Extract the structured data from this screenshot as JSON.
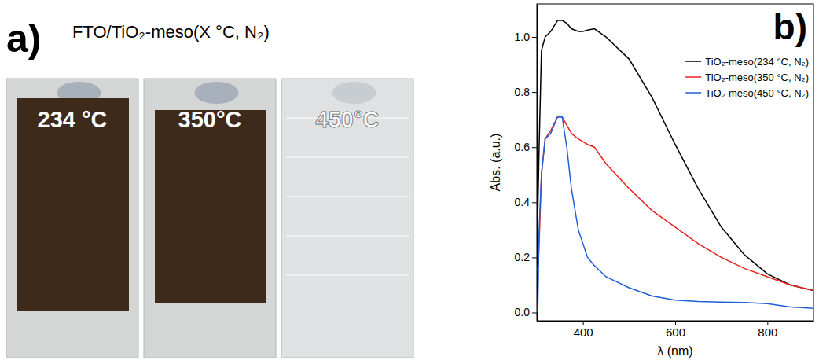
{
  "panel_a": {
    "label": "a)",
    "title": "FTO/TiO₂-meso(X °C, N₂)",
    "samples": [
      "234 °C",
      "350°C",
      "450°C"
    ]
  },
  "chart_data": {
    "type": "line",
    "annotations": [
      "b)"
    ],
    "x_label": "λ (nm)",
    "y_label": "Abs. (a.u.)",
    "x": [
      302,
      305,
      310,
      318,
      330,
      345,
      355,
      365,
      375,
      390,
      400,
      410,
      425,
      450,
      500,
      550,
      600,
      650,
      700,
      750,
      800,
      850,
      900
    ],
    "series": [
      {
        "name": "TiO₂-meso(234 °C, N₂)",
        "color": "#000000",
        "values": [
          0.35,
          0.6,
          0.95,
          1.0,
          1.02,
          1.06,
          1.06,
          1.05,
          1.03,
          1.02,
          1.02,
          1.025,
          1.03,
          1.0,
          0.92,
          0.78,
          0.61,
          0.45,
          0.31,
          0.21,
          0.14,
          0.1,
          0.08
        ]
      },
      {
        "name": "TiO₂-meso(350 °C, N₂)",
        "color": "#e8211c",
        "values": [
          0.15,
          0.25,
          0.5,
          0.63,
          0.66,
          0.71,
          0.71,
          0.68,
          0.65,
          0.63,
          0.62,
          0.61,
          0.6,
          0.54,
          0.45,
          0.37,
          0.31,
          0.25,
          0.2,
          0.16,
          0.13,
          0.1,
          0.08
        ]
      },
      {
        "name": "TiO₂-meso(450 °C, N₂)",
        "color": "#1f5fd6",
        "values": [
          0.0,
          0.3,
          0.5,
          0.63,
          0.65,
          0.71,
          0.71,
          0.6,
          0.45,
          0.3,
          0.25,
          0.2,
          0.17,
          0.13,
          0.09,
          0.06,
          0.045,
          0.04,
          0.038,
          0.036,
          0.032,
          0.02,
          0.015
        ]
      }
    ],
    "xlim": [
      300,
      900
    ],
    "ylim": [
      -0.03,
      1.12
    ],
    "xticks": [
      400,
      600,
      800
    ],
    "yticks": [
      {
        "value": 0,
        "label": "0.0"
      },
      0.2,
      0.4,
      0.6,
      0.8,
      {
        "value": 1,
        "label": "1.0"
      }
    ],
    "legend": "upper right"
  }
}
